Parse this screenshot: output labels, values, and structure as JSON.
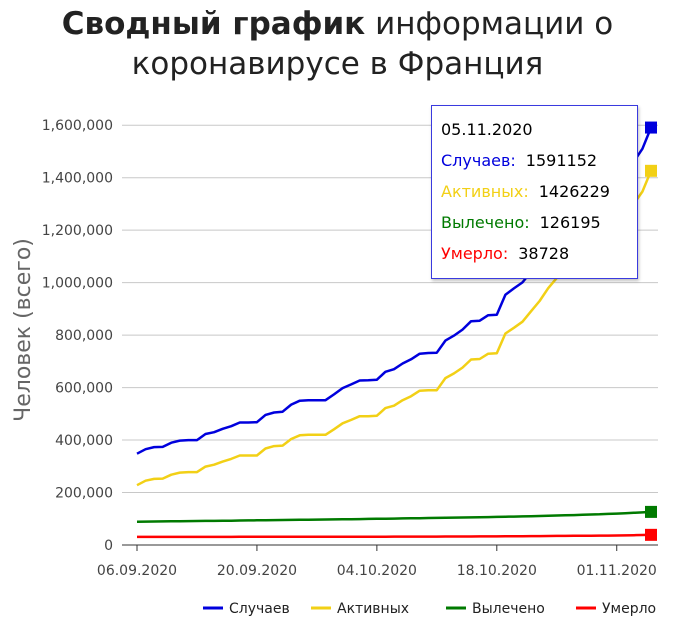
{
  "title": {
    "bold": "Сводный график",
    "rest": "информации о",
    "line2": "коронавирусе в Франция"
  },
  "chart_data": {
    "type": "line",
    "ylabel": "Человек (всего)",
    "xlabel": "",
    "ylim": [
      0,
      1700000
    ],
    "y_ticks": [
      0,
      200000,
      400000,
      600000,
      800000,
      1000000,
      1200000,
      1400000,
      1600000
    ],
    "y_tick_labels": [
      "0",
      "200,000",
      "400,000",
      "600,000",
      "800,000",
      "1,000,000",
      "1,200,000",
      "1,400,000",
      "1,600,000"
    ],
    "x_tick_labels": [
      "06.09.2020",
      "20.09.2020",
      "04.10.2020",
      "18.10.2020",
      "01.11.2020"
    ],
    "x_tick_index": [
      0,
      14,
      28,
      42,
      56
    ],
    "x": [
      "06.09.2020",
      "07.09.2020",
      "08.09.2020",
      "09.09.2020",
      "10.09.2020",
      "11.09.2020",
      "12.09.2020",
      "13.09.2020",
      "14.09.2020",
      "15.09.2020",
      "16.09.2020",
      "17.09.2020",
      "18.09.2020",
      "19.09.2020",
      "20.09.2020",
      "21.09.2020",
      "22.09.2020",
      "23.09.2020",
      "24.09.2020",
      "25.09.2020",
      "26.09.2020",
      "27.09.2020",
      "28.09.2020",
      "29.09.2020",
      "30.09.2020",
      "01.10.2020",
      "02.10.2020",
      "03.10.2020",
      "04.10.2020",
      "05.10.2020",
      "06.10.2020",
      "07.10.2020",
      "08.10.2020",
      "09.10.2020",
      "10.10.2020",
      "11.10.2020",
      "12.10.2020",
      "13.10.2020",
      "14.10.2020",
      "15.10.2020",
      "16.10.2020",
      "17.10.2020",
      "18.10.2020",
      "19.10.2020",
      "20.10.2020",
      "21.10.2020",
      "22.10.2020",
      "23.10.2020",
      "24.10.2020",
      "25.10.2020",
      "26.10.2020",
      "27.10.2020",
      "28.10.2020",
      "29.10.2020",
      "30.10.2020",
      "31.10.2020",
      "01.11.2020",
      "02.11.2020",
      "03.11.2020",
      "04.11.2020",
      "05.11.2020"
    ],
    "series": [
      {
        "name": "Случаев",
        "color": "#0000dd",
        "values": [
          348000,
          365000,
          373000,
          374000,
          390000,
          398000,
          400000,
          400000,
          423000,
          430000,
          443000,
          453000,
          467000,
          467000,
          468000,
          496000,
          505000,
          508000,
          535000,
          550000,
          552000,
          552000,
          552000,
          574000,
          598000,
          612000,
          627000,
          628000,
          630000,
          660000,
          670000,
          692000,
          708000,
          729000,
          732000,
          733000,
          779000,
          798000,
          821000,
          853000,
          855000,
          876000,
          878000,
          954000,
          978000,
          1001000,
          1042000,
          1082000,
          1132000,
          1172000,
          1200000,
          1226000,
          1266000,
          1321000,
          1364000,
          1401000,
          1459000,
          1462000,
          1462000,
          1510000,
          1591152
        ]
      },
      {
        "name": "Активных",
        "color": "#f2d016",
        "values": [
          228000,
          245000,
          252000,
          253000,
          268000,
          276000,
          278000,
          278000,
          299000,
          306000,
          318000,
          328000,
          341000,
          341000,
          341000,
          368000,
          377000,
          379000,
          404000,
          418000,
          420000,
          420000,
          420000,
          441000,
          464000,
          477000,
          491000,
          491000,
          493000,
          522000,
          531000,
          552000,
          567000,
          588000,
          590000,
          590000,
          636000,
          654000,
          676000,
          707000,
          709000,
          729000,
          731000,
          806000,
          828000,
          851000,
          891000,
          930000,
          979000,
          1018000,
          1045000,
          1070000,
          1110000,
          1164000,
          1206000,
          1242000,
          1299000,
          1301000,
          1301000,
          1347000,
          1426229
        ]
      },
      {
        "name": "Вылечено",
        "color": "#007a00",
        "values": [
          89000,
          89300,
          89600,
          89900,
          90200,
          90600,
          91000,
          91300,
          91700,
          92000,
          92400,
          92800,
          93200,
          93600,
          94000,
          94400,
          94800,
          95200,
          95600,
          96000,
          96400,
          96800,
          97200,
          97600,
          98000,
          98400,
          98800,
          99300,
          99800,
          100300,
          100800,
          101300,
          101800,
          102300,
          102800,
          103300,
          103800,
          104300,
          104800,
          105300,
          105900,
          106500,
          107100,
          107700,
          108400,
          109100,
          109800,
          110600,
          111400,
          112300,
          113200,
          114100,
          115100,
          116100,
          117200,
          118400,
          119700,
          121200,
          122800,
          124400,
          126195
        ]
      },
      {
        "name": "Умерло",
        "color": "#ff0000",
        "values": [
          30726,
          30740,
          30764,
          30794,
          30813,
          30893,
          30910,
          30916,
          30950,
          30983,
          31007,
          31045,
          31095,
          31120,
          31127,
          31170,
          31203,
          31246,
          31290,
          31336,
          31384,
          31400,
          31439,
          31501,
          31570,
          31623,
          31667,
          31688,
          31707,
          31762,
          31838,
          31940,
          31980,
          32060,
          32156,
          32164,
          32210,
          32300,
          32350,
          32455,
          32700,
          32800,
          32965,
          33100,
          33300,
          33600,
          33900,
          34100,
          34300,
          34500,
          34700,
          35000,
          35300,
          35500,
          35800,
          36000,
          36300,
          36700,
          37200,
          38000,
          38728
        ]
      }
    ],
    "legend_position": "bottom-right",
    "grid": true,
    "tooltip": {
      "date": "05.11.2020",
      "rows": [
        {
          "label": "Случаев:",
          "value": "1591152",
          "color": "#0000dd"
        },
        {
          "label": "Активных:",
          "value": "1426229",
          "color": "#f2d016"
        },
        {
          "label": "Вылечено:",
          "value": "126195",
          "color": "#007a00"
        },
        {
          "label": "Умерло:",
          "value": "38728",
          "color": "#ff0000"
        }
      ]
    }
  }
}
